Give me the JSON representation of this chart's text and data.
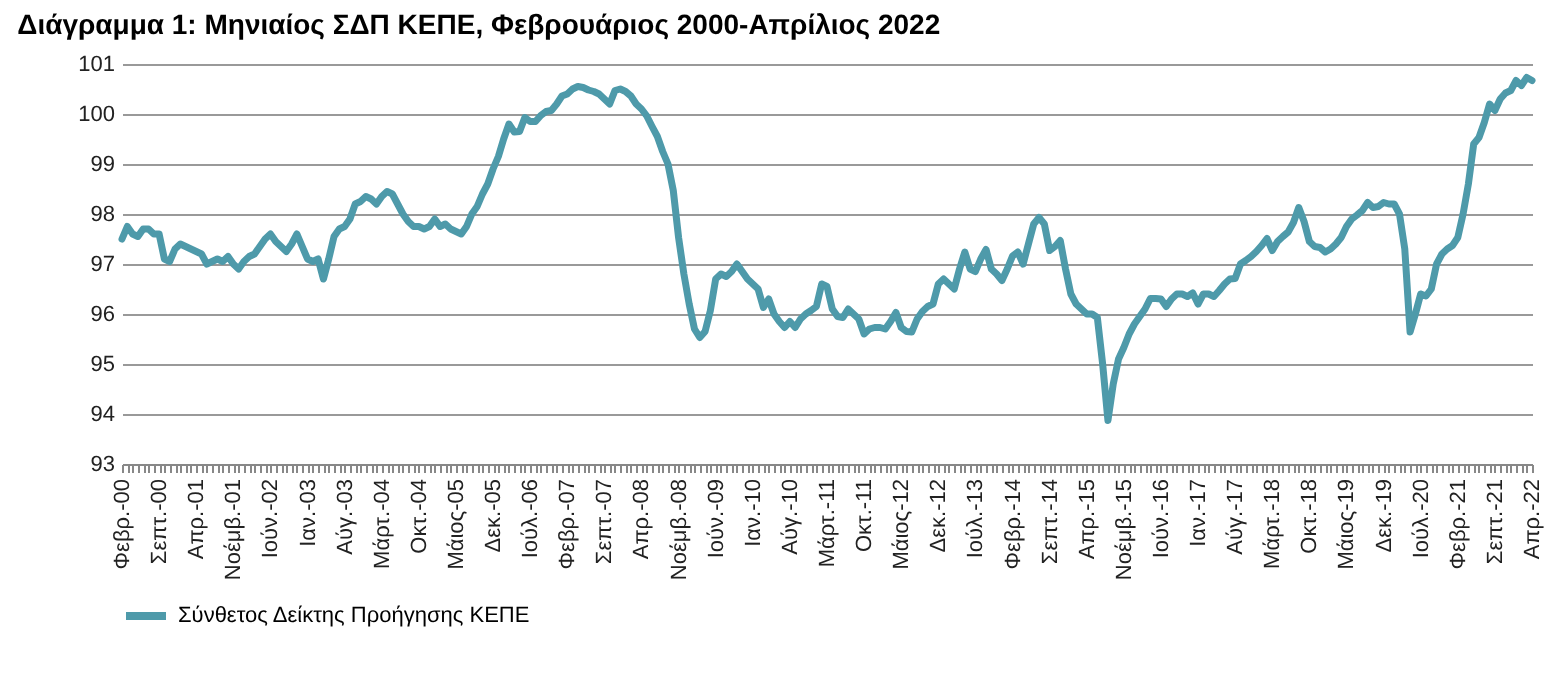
{
  "chart_data": {
    "type": "line",
    "title": "Διάγραμμα 1: Μηνιαίος ΣΔΠ ΚΕΠΕ, Φεβρουάριος 2000-Απρίλιος 2022",
    "categories": [
      "Φεβρ.-00",
      null,
      null,
      null,
      null,
      null,
      null,
      "Σεπτ.-00",
      null,
      null,
      null,
      null,
      null,
      null,
      "Απρ.-01",
      null,
      null,
      null,
      null,
      null,
      null,
      "Νοέμβ.-01",
      null,
      null,
      null,
      null,
      null,
      null,
      "Ιούν.-02",
      null,
      null,
      null,
      null,
      null,
      null,
      "Ιαν.-03",
      null,
      null,
      null,
      null,
      null,
      null,
      "Αύγ.-03",
      null,
      null,
      null,
      null,
      null,
      null,
      "Μάρτ.-04",
      null,
      null,
      null,
      null,
      null,
      null,
      "Οκτ.-04",
      null,
      null,
      null,
      null,
      null,
      null,
      "Μάιος-05",
      null,
      null,
      null,
      null,
      null,
      null,
      "Δεκ.-05",
      null,
      null,
      null,
      null,
      null,
      null,
      "Ιούλ.-06",
      null,
      null,
      null,
      null,
      null,
      null,
      "Φεβρ.-07",
      null,
      null,
      null,
      null,
      null,
      null,
      "Σεπτ.-07",
      null,
      null,
      null,
      null,
      null,
      null,
      "Απρ.-08",
      null,
      null,
      null,
      null,
      null,
      null,
      "Νοέμβ.-08",
      null,
      null,
      null,
      null,
      null,
      null,
      "Ιούν.-09",
      null,
      null,
      null,
      null,
      null,
      null,
      "Ιαν.-10",
      null,
      null,
      null,
      null,
      null,
      null,
      "Αύγ.-10",
      null,
      null,
      null,
      null,
      null,
      null,
      "Μάρτ.-11",
      null,
      null,
      null,
      null,
      null,
      null,
      "Οκτ.-11",
      null,
      null,
      null,
      null,
      null,
      null,
      "Μάιος-12",
      null,
      null,
      null,
      null,
      null,
      null,
      "Δεκ.-12",
      null,
      null,
      null,
      null,
      null,
      null,
      "Ιούλ.-13",
      null,
      null,
      null,
      null,
      null,
      null,
      "Φεβρ.-14",
      null,
      null,
      null,
      null,
      null,
      null,
      "Σεπτ.-14",
      null,
      null,
      null,
      null,
      null,
      null,
      "Απρ.-15",
      null,
      null,
      null,
      null,
      null,
      null,
      "Νοέμβ.-15",
      null,
      null,
      null,
      null,
      null,
      null,
      "Ιούν.-16",
      null,
      null,
      null,
      null,
      null,
      null,
      "Ιαν.-17",
      null,
      null,
      null,
      null,
      null,
      null,
      "Αύγ.-17",
      null,
      null,
      null,
      null,
      null,
      null,
      "Μάρτ.-18",
      null,
      null,
      null,
      null,
      null,
      null,
      "Οκτ.-18",
      null,
      null,
      null,
      null,
      null,
      null,
      "Μάιος-19",
      null,
      null,
      null,
      null,
      null,
      null,
      "Δεκ.-19",
      null,
      null,
      null,
      null,
      null,
      null,
      "Ιούλ.-20",
      null,
      null,
      null,
      null,
      null,
      null,
      "Φεβρ.-21",
      null,
      null,
      null,
      null,
      null,
      null,
      "Σεπτ.-21",
      null,
      null,
      null,
      null,
      null,
      null,
      "Απρ.-22"
    ],
    "series": [
      {
        "name": "Σύνθετος Δείκτης Προήγησης ΚΕΠΕ",
        "color": "#4e9aaa",
        "values": [
          97.5,
          97.75,
          97.6,
          97.55,
          97.7,
          97.7,
          97.6,
          97.6,
          97.1,
          97.05,
          97.3,
          97.4,
          97.35,
          97.3,
          97.25,
          97.2,
          97.0,
          97.05,
          97.1,
          97.05,
          97.15,
          97.0,
          96.9,
          97.05,
          97.15,
          97.2,
          97.35,
          97.5,
          97.6,
          97.45,
          97.35,
          97.25,
          97.4,
          97.6,
          97.35,
          97.1,
          97.05,
          97.1,
          96.7,
          97.1,
          97.55,
          97.7,
          97.75,
          97.9,
          98.2,
          98.25,
          98.35,
          98.3,
          98.2,
          98.35,
          98.45,
          98.4,
          98.2,
          98.0,
          97.85,
          97.75,
          97.75,
          97.7,
          97.75,
          97.9,
          97.75,
          97.8,
          97.7,
          97.65,
          97.6,
          97.75,
          98.0,
          98.15,
          98.4,
          98.6,
          98.9,
          99.15,
          99.5,
          99.8,
          99.64,
          99.65,
          99.93,
          99.85,
          99.85,
          99.97,
          100.05,
          100.07,
          100.2,
          100.36,
          100.4,
          100.5,
          100.55,
          100.53,
          100.48,
          100.45,
          100.4,
          100.3,
          100.2,
          100.47,
          100.5,
          100.45,
          100.36,
          100.2,
          100.1,
          99.96,
          99.75,
          99.55,
          99.25,
          99.0,
          98.47,
          97.53,
          96.8,
          96.2,
          95.7,
          95.53,
          95.65,
          96.07,
          96.7,
          96.8,
          96.75,
          96.85,
          97.0,
          96.85,
          96.7,
          96.6,
          96.5,
          96.13,
          96.3,
          96.0,
          95.85,
          95.73,
          95.85,
          95.73,
          95.9,
          96.0,
          96.07,
          96.15,
          96.6,
          96.55,
          96.1,
          95.95,
          95.93,
          96.1,
          96.0,
          95.9,
          95.6,
          95.7,
          95.73,
          95.73,
          95.7,
          95.85,
          96.03,
          95.73,
          95.65,
          95.64,
          95.9,
          96.05,
          96.15,
          96.2,
          96.6,
          96.7,
          96.6,
          96.5,
          96.9,
          97.24,
          96.9,
          96.85,
          97.1,
          97.29,
          96.9,
          96.8,
          96.67,
          96.9,
          97.16,
          97.24,
          97.0,
          97.4,
          97.8,
          97.93,
          97.8,
          97.27,
          97.35,
          97.47,
          96.9,
          96.4,
          96.2,
          96.1,
          96.0,
          96.0,
          95.93,
          95.0,
          93.87,
          94.6,
          95.1,
          95.33,
          95.6,
          95.8,
          95.95,
          96.1,
          96.31,
          96.31,
          96.3,
          96.15,
          96.3,
          96.4,
          96.4,
          96.35,
          96.42,
          96.2,
          96.4,
          96.4,
          96.35,
          96.47,
          96.6,
          96.7,
          96.71,
          97.0,
          97.07,
          97.15,
          97.25,
          97.37,
          97.51,
          97.27,
          97.45,
          97.55,
          97.64,
          97.83,
          98.13,
          97.85,
          97.45,
          97.35,
          97.33,
          97.24,
          97.3,
          97.4,
          97.53,
          97.75,
          97.9,
          97.98,
          98.07,
          98.23,
          98.13,
          98.15,
          98.23,
          98.2,
          98.2,
          98.0,
          97.3,
          95.64,
          96.0,
          96.4,
          96.36,
          96.5,
          97.0,
          97.2,
          97.3,
          97.37,
          97.53,
          98.0,
          98.6,
          99.4,
          99.53,
          99.83,
          100.2,
          100.07,
          100.3,
          100.42,
          100.47,
          100.67,
          100.57,
          100.73,
          100.67
        ]
      }
    ],
    "ylim": [
      93,
      101
    ],
    "yticks": [
      93,
      94,
      95,
      96,
      97,
      98,
      99,
      100,
      101
    ],
    "grid": "y",
    "legend": "bottom",
    "line_style": "solid"
  }
}
